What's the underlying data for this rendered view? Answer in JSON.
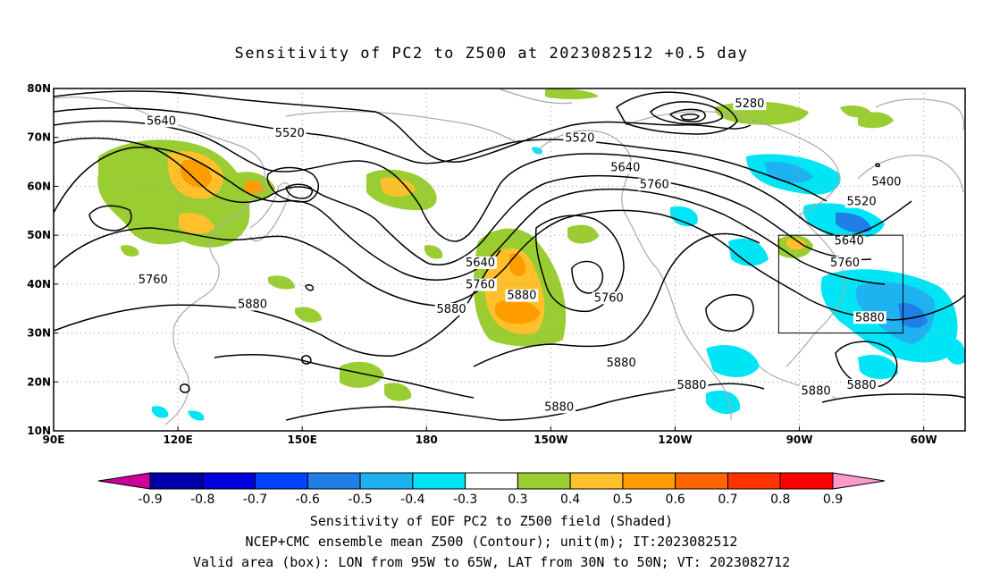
{
  "title": "Sensitivity of PC2 to Z500 at 2023082512 +0.5 day",
  "captions": [
    "Sensitivity of EOF PC2 to Z500 field (Shaded)",
    "NCEP+CMC ensemble mean Z500 (Contour); unit(m); IT:2023082512",
    "Valid area (box): LON from 95W to 65W, LAT from 30N to 50N; VT: 2023082712"
  ],
  "map": {
    "lon_range": [
      90,
      310
    ],
    "lat_range": [
      10,
      80
    ],
    "lon_ticks": [
      {
        "lon": 90,
        "label": "90E"
      },
      {
        "lon": 120,
        "label": "120E"
      },
      {
        "lon": 150,
        "label": "150E"
      },
      {
        "lon": 180,
        "label": "180"
      },
      {
        "lon": 210,
        "label": "150W"
      },
      {
        "lon": 240,
        "label": "120W"
      },
      {
        "lon": 270,
        "label": "90W"
      },
      {
        "lon": 300,
        "label": "60W"
      }
    ],
    "lat_ticks": [
      {
        "lat": 10,
        "label": "10N"
      },
      {
        "lat": 20,
        "label": "20N"
      },
      {
        "lat": 30,
        "label": "30N"
      },
      {
        "lat": 40,
        "label": "40N"
      },
      {
        "lat": 50,
        "label": "50N"
      },
      {
        "lat": 60,
        "label": "60N"
      },
      {
        "lat": 70,
        "label": "70N"
      },
      {
        "lat": 80,
        "label": "80N"
      }
    ],
    "grid": true,
    "box": {
      "lon_min": 265,
      "lon_max": 295,
      "lat_min": 30,
      "lat_max": 50
    },
    "contour_labels": [
      {
        "text": "5280",
        "lon": 258,
        "lat": 76.5
      },
      {
        "text": "5400",
        "lon": 291,
        "lat": 60.5
      },
      {
        "text": "5520",
        "lon": 147,
        "lat": 70.5
      },
      {
        "text": "5520",
        "lon": 217,
        "lat": 69.5
      },
      {
        "text": "5520",
        "lon": 285,
        "lat": 56.5
      },
      {
        "text": "5640",
        "lon": 116,
        "lat": 73
      },
      {
        "text": "5640",
        "lon": 228,
        "lat": 63.5
      },
      {
        "text": "5640",
        "lon": 193,
        "lat": 44
      },
      {
        "text": "5640",
        "lon": 282,
        "lat": 48.5
      },
      {
        "text": "5760",
        "lon": 114,
        "lat": 40.5
      },
      {
        "text": "5760",
        "lon": 193,
        "lat": 39.5
      },
      {
        "text": "5760",
        "lon": 235,
        "lat": 60
      },
      {
        "text": "5760",
        "lon": 281,
        "lat": 44
      },
      {
        "text": "5760",
        "lon": 224,
        "lat": 36.8
      },
      {
        "text": "5880",
        "lon": 138,
        "lat": 35.5
      },
      {
        "text": "5880",
        "lon": 186,
        "lat": 34.5
      },
      {
        "text": "5880",
        "lon": 203,
        "lat": 37.3
      },
      {
        "text": "5880",
        "lon": 227,
        "lat": 23.5
      },
      {
        "text": "5880",
        "lon": 244,
        "lat": 19
      },
      {
        "text": "5880",
        "lon": 287,
        "lat": 32.8
      },
      {
        "text": "5880",
        "lon": 274,
        "lat": 17.8
      },
      {
        "text": "5880",
        "lon": 285,
        "lat": 19
      },
      {
        "text": "5880",
        "lon": 212,
        "lat": 14.5
      }
    ]
  },
  "colorbar": {
    "labels": [
      "-0.9",
      "-0.8",
      "-0.7",
      "-0.6",
      "-0.5",
      "-0.4",
      "-0.3",
      "0.3",
      "0.4",
      "0.5",
      "0.6",
      "0.7",
      "0.8",
      "0.9"
    ],
    "colors": [
      "#cc0099",
      "#0000aa",
      "#0000dd",
      "#0044ff",
      "#1f7fe6",
      "#1eb3f0",
      "#00e5f5",
      "#ffffff",
      "#9acd32",
      "#ffc02b",
      "#ff9d00",
      "#ff6600",
      "#ff3300",
      "#ff0000",
      "#ff99cc"
    ]
  }
}
